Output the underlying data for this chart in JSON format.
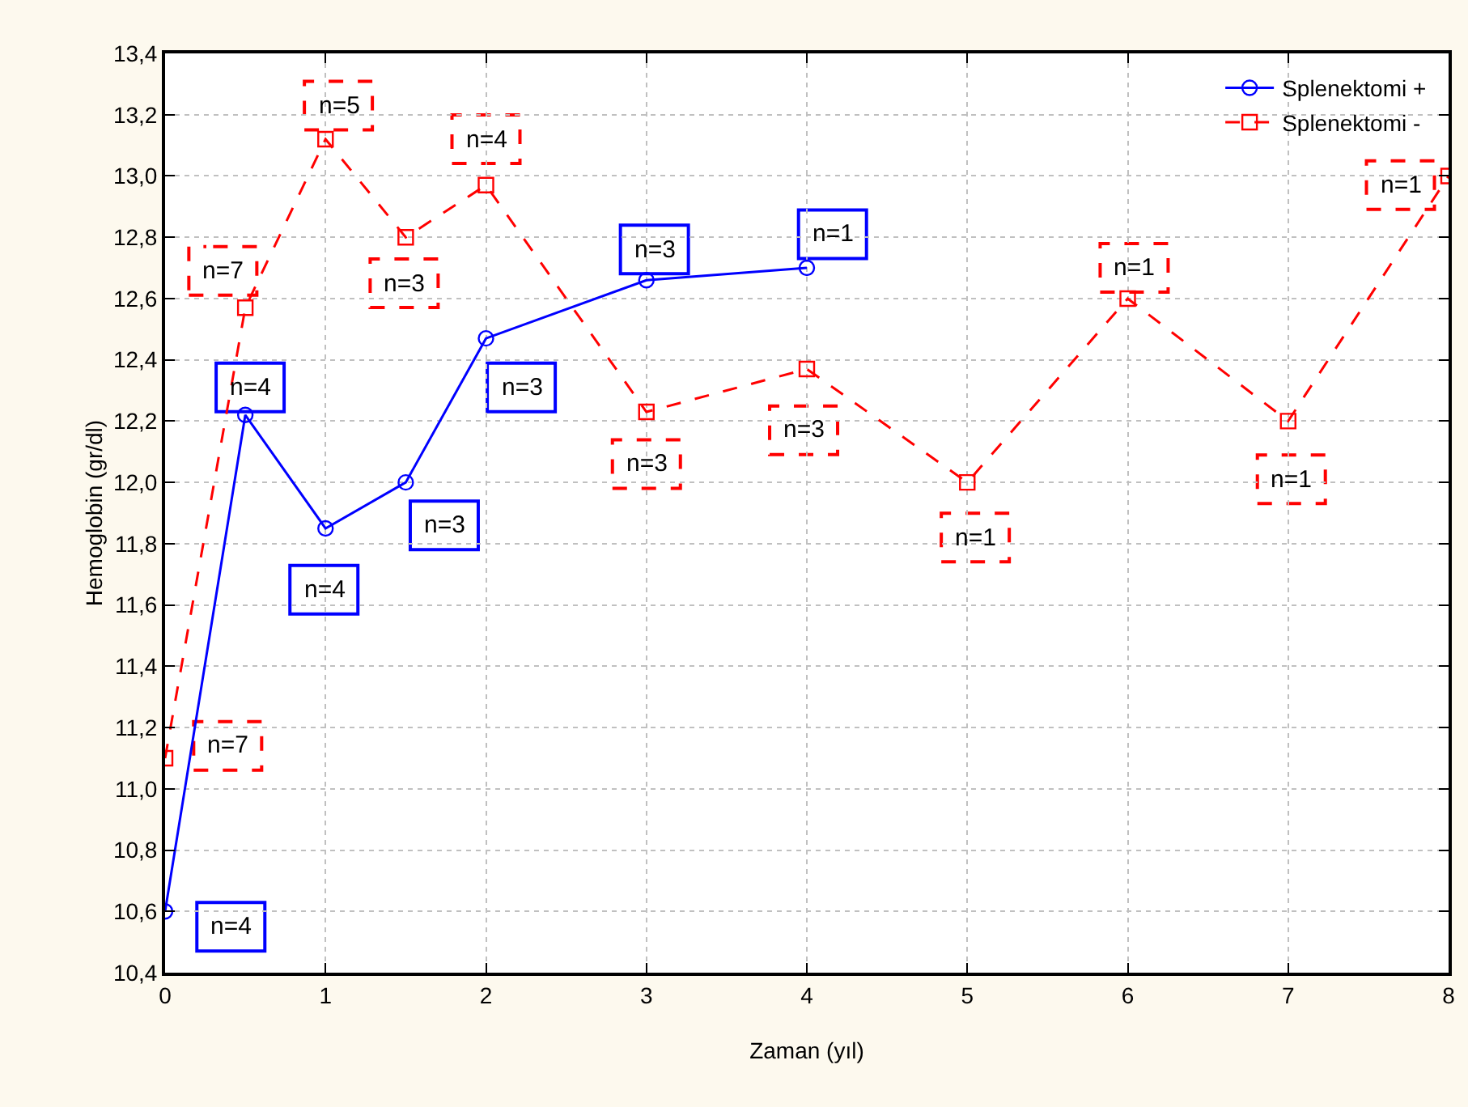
{
  "chart_data": {
    "type": "line",
    "xlabel": "Zaman (yıl)",
    "ylabel": "Hemoglobin (gr/dl)",
    "xlim": [
      0,
      8
    ],
    "xticks": [
      0,
      1,
      2,
      3,
      4,
      5,
      6,
      7,
      8
    ],
    "ylim": [
      10.4,
      13.4
    ],
    "yticks": [
      {
        "value": 10.4,
        "label": "10,4"
      },
      {
        "value": 10.6,
        "label": "10,6"
      },
      {
        "value": 10.8,
        "label": "10,8"
      },
      {
        "value": 11.0,
        "label": "11,0"
      },
      {
        "value": 11.2,
        "label": "11,2"
      },
      {
        "value": 11.4,
        "label": "11,4"
      },
      {
        "value": 11.6,
        "label": "11,6"
      },
      {
        "value": 11.8,
        "label": "11,8"
      },
      {
        "value": 12.0,
        "label": "12,0"
      },
      {
        "value": 12.2,
        "label": "12,2"
      },
      {
        "value": 12.4,
        "label": "12,4"
      },
      {
        "value": 12.6,
        "label": "12,6"
      },
      {
        "value": 12.8,
        "label": "12,8"
      },
      {
        "value": 13.0,
        "label": "13,0"
      },
      {
        "value": 13.2,
        "label": "13,2"
      },
      {
        "value": 13.4,
        "label": "13,4"
      }
    ],
    "grid": true,
    "legend": "top right",
    "series": [
      {
        "name": "Splenektomi +",
        "color": "#0000ff",
        "marker": "circle",
        "line_style": "solid",
        "x": [
          0,
          0.5,
          1,
          1.5,
          2,
          3,
          4
        ],
        "values": [
          10.6,
          12.22,
          11.85,
          12.0,
          12.47,
          12.66,
          12.7
        ]
      },
      {
        "name": "Splenektomi -",
        "color": "#ff0000",
        "marker": "square",
        "line_style": "dashed",
        "x": [
          0,
          0.5,
          1,
          1.5,
          2,
          3,
          4,
          5,
          6,
          7,
          8
        ],
        "values": [
          11.1,
          12.57,
          13.12,
          12.8,
          12.97,
          12.23,
          12.37,
          12.0,
          12.6,
          12.2,
          13.0
        ]
      }
    ],
    "annotations": [
      {
        "text": "n=4",
        "x": 0.41,
        "y": 10.55
      },
      {
        "text": "n=4",
        "x": 0.53,
        "y": 12.31
      },
      {
        "text": "n=4",
        "x": 0.99,
        "y": 11.65
      },
      {
        "text": "n=3",
        "x": 1.74,
        "y": 11.86
      },
      {
        "text": "n=3",
        "x": 2.22,
        "y": 12.31
      },
      {
        "text": "n=3",
        "x": 3.05,
        "y": 12.76
      },
      {
        "text": "n=1",
        "x": 4.16,
        "y": 12.81
      },
      {
        "text": "n=7",
        "x": 0.39,
        "y": 11.14
      },
      {
        "text": "n=7",
        "x": 0.36,
        "y": 12.69
      },
      {
        "text": "n=5",
        "x": 1.08,
        "y": 13.23
      },
      {
        "text": "n=3",
        "x": 1.49,
        "y": 12.65
      },
      {
        "text": "n=4",
        "x": 2.0,
        "y": 13.12
      },
      {
        "text": "n=3",
        "x": 3.0,
        "y": 12.06
      },
      {
        "text": "n=3",
        "x": 3.98,
        "y": 12.17
      },
      {
        "text": "n=1",
        "x": 5.05,
        "y": 11.82
      },
      {
        "text": "n=1",
        "x": 6.04,
        "y": 12.7
      },
      {
        "text": "n=1",
        "x": 7.02,
        "y": 12.01
      },
      {
        "text": "n=1",
        "x": 7.7,
        "y": 12.97
      }
    ]
  }
}
